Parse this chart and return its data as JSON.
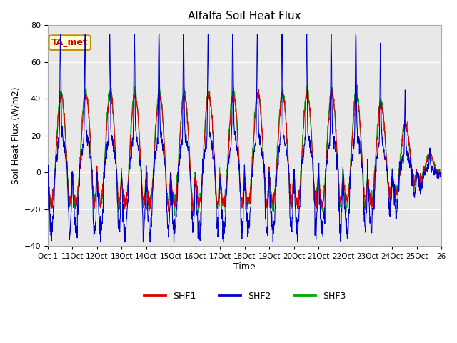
{
  "title": "Alfalfa Soil Heat Flux",
  "ylabel": "Soil Heat Flux (W/m2)",
  "xlabel": "Time",
  "ylim": [
    -40,
    80
  ],
  "yticks": [
    -40,
    -20,
    0,
    20,
    40,
    60,
    80
  ],
  "colors": {
    "SHF1": "#dd0000",
    "SHF2": "#0000cc",
    "SHF3": "#00aa00"
  },
  "bg_color": "#e8e8e8",
  "annotation_text": "TA_met",
  "annotation_color": "#cc0000",
  "annotation_bg": "#ffffcc",
  "annotation_border": "#cc8800",
  "tick_positions": [
    0,
    1,
    2,
    3,
    4,
    5,
    6,
    7,
    8,
    9,
    10,
    11,
    12,
    13,
    14,
    15,
    16
  ],
  "tick_labels": [
    "Oct 1",
    "11Oct",
    "12Oct",
    "13Oct",
    "14Oct",
    "15Oct",
    "16Oct",
    "17Oct",
    "18Oct",
    "19Oct",
    "20Oct",
    "21Oct",
    "22Oct",
    "23Oct",
    "24Oct",
    "25Oct",
    "26"
  ],
  "n_days": 16,
  "samples_per_day": 96
}
